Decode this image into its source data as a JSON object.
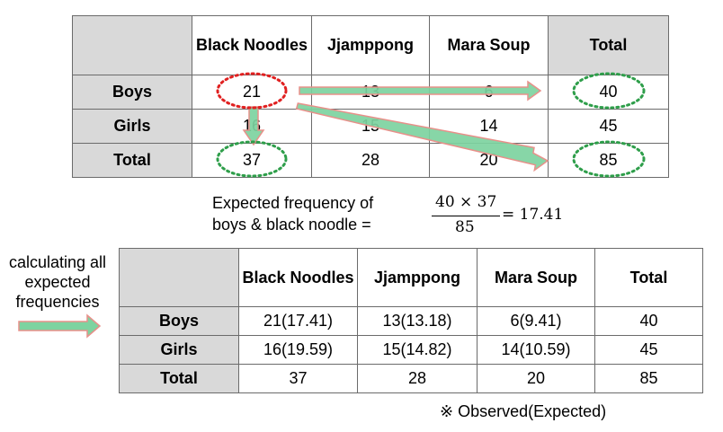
{
  "observed_table": {
    "headers": [
      "",
      "Black Noodles",
      "Jjamppong",
      "Mara Soup",
      "Total"
    ],
    "rows": [
      [
        "Boys",
        "21",
        "13",
        "6",
        "40"
      ],
      [
        "Girls",
        "16",
        "15",
        "14",
        "45"
      ],
      [
        "Total",
        "37",
        "28",
        "20",
        "85"
      ]
    ]
  },
  "explanation": {
    "line1": "Expected frequency of",
    "line2": "boys & black noodle =",
    "numerator": "40 × 37",
    "denominator": "85",
    "result": "= 17.41"
  },
  "side_label": "calculating all expected frequencies",
  "expected_table": {
    "headers": [
      "",
      "Black Noodles",
      "Jjamppong",
      "Mara Soup",
      "Total"
    ],
    "rows": [
      [
        "Boys",
        "21(17.41)",
        "13(13.18)",
        "6(9.41)",
        "40"
      ],
      [
        "Girls",
        "16(19.59)",
        "15(14.82)",
        "14(10.59)",
        "45"
      ],
      [
        "Total",
        "37",
        "28",
        "20",
        "85"
      ]
    ]
  },
  "note": "※ Observed(Expected)",
  "colors": {
    "header_fill": "#d9d9d9",
    "arrow_fill": "#7dd3a0",
    "arrow_outline": "#e8908a",
    "highlight_red": "#e02020",
    "highlight_green": "#2e9e4a"
  }
}
